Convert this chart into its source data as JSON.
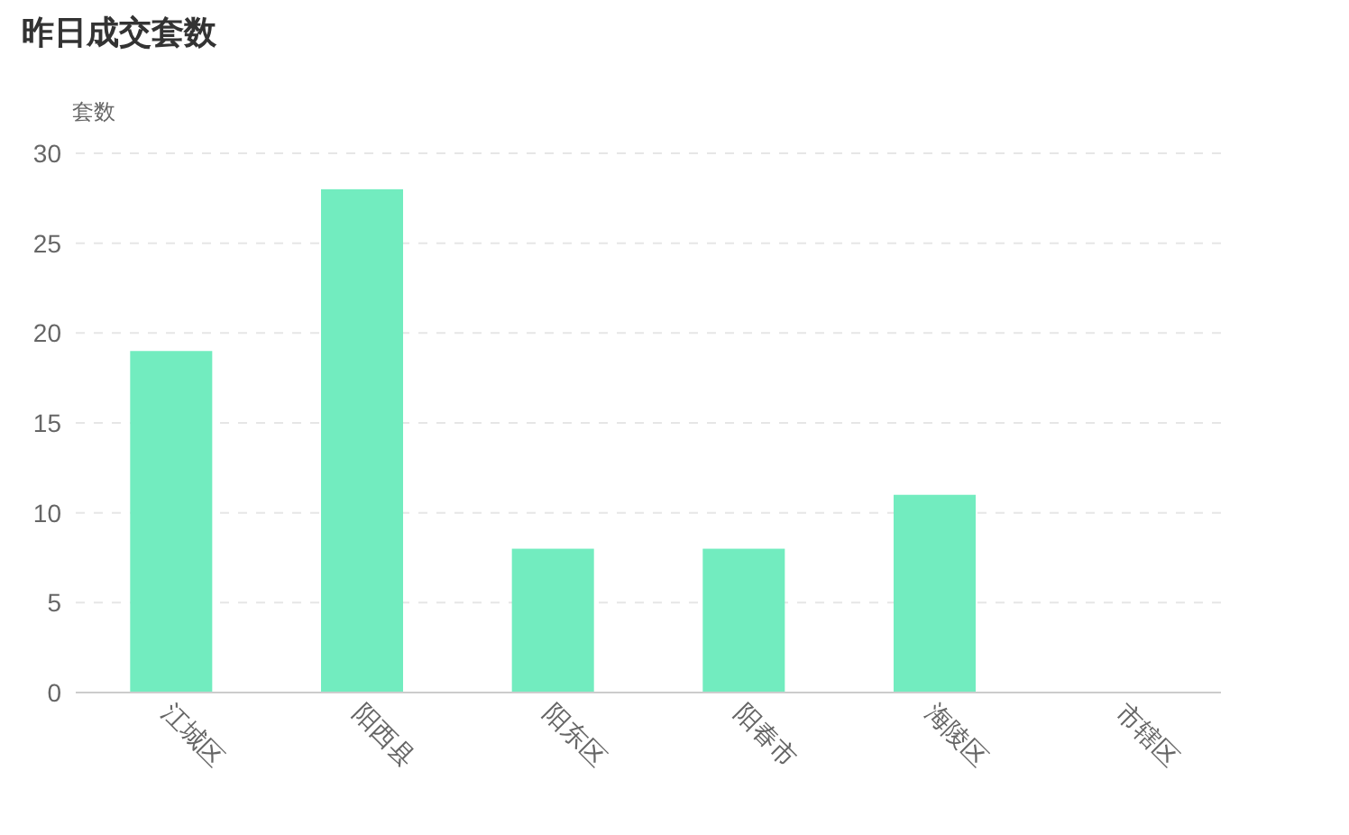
{
  "chart_data": {
    "type": "bar",
    "title": "昨日成交套数",
    "ylabel": "套数",
    "categories": [
      "江城区",
      "阳西县",
      "阳东区",
      "阳春市",
      "海陵区",
      "市辖区"
    ],
    "values": [
      19,
      28,
      8,
      8,
      11,
      0
    ],
    "color": "#72ecbf",
    "ylim": [
      0,
      30
    ],
    "yticks": [
      0,
      5,
      10,
      15,
      20,
      25,
      30
    ],
    "grid": "y"
  }
}
